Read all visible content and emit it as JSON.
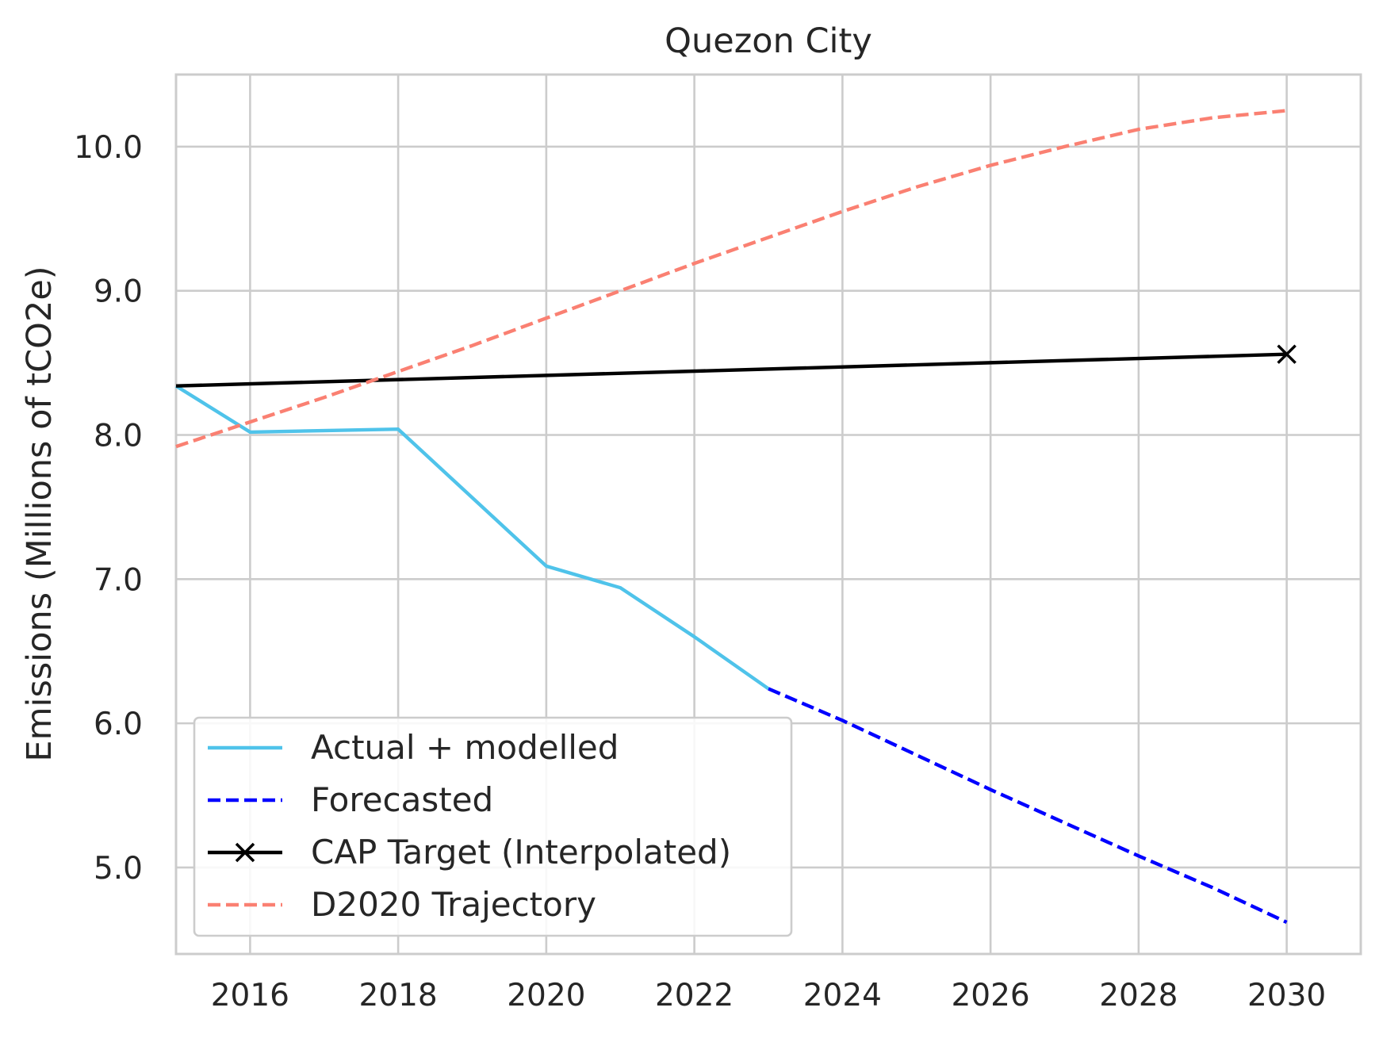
{
  "chart_data": {
    "type": "line",
    "title": "Quezon City",
    "xlabel": "",
    "ylabel": "Emissions (Millions of tCO2e)",
    "xlim": [
      2015,
      2031
    ],
    "ylim": [
      4.4,
      10.5
    ],
    "xticks": [
      2016,
      2018,
      2020,
      2022,
      2024,
      2026,
      2028,
      2030
    ],
    "xtick_labels": [
      "2016",
      "2018",
      "2020",
      "2022",
      "2024",
      "2026",
      "2028",
      "2030"
    ],
    "yticks": [
      5.0,
      6.0,
      7.0,
      8.0,
      9.0,
      10.0
    ],
    "ytick_labels": [
      "5.0",
      "6.0",
      "7.0",
      "8.0",
      "9.0",
      "10.0"
    ],
    "grid": true,
    "legend_position": "lower-left",
    "series": [
      {
        "name": "Actual + modelled",
        "color": "#4fc3ea",
        "style": "solid",
        "marker": "none",
        "x": [
          2015,
          2016,
          2018,
          2020,
          2021,
          2022,
          2023
        ],
        "y": [
          8.34,
          8.02,
          8.04,
          7.09,
          6.94,
          6.6,
          6.24
        ]
      },
      {
        "name": "Forecasted",
        "color": "#0000ff",
        "style": "dashed",
        "marker": "none",
        "x": [
          2023,
          2024,
          2025,
          2026,
          2027,
          2028,
          2029,
          2030
        ],
        "y": [
          6.24,
          6.02,
          5.78,
          5.54,
          5.31,
          5.08,
          4.86,
          4.62
        ]
      },
      {
        "name": "CAP Target (Interpolated)",
        "color": "#000000",
        "style": "solid",
        "marker": "x-at-end",
        "x": [
          2015,
          2030
        ],
        "y": [
          8.34,
          8.56
        ]
      },
      {
        "name": "D2020 Trajectory",
        "color": "#fa8072",
        "style": "dashed",
        "marker": "none",
        "x": [
          2015,
          2016,
          2017,
          2018,
          2019,
          2020,
          2021,
          2022,
          2023,
          2024,
          2025,
          2026,
          2027,
          2028,
          2029,
          2030
        ],
        "y": [
          7.92,
          8.09,
          8.26,
          8.44,
          8.62,
          8.81,
          9.0,
          9.19,
          9.37,
          9.55,
          9.72,
          9.87,
          10.0,
          10.12,
          10.2,
          10.25
        ]
      }
    ]
  }
}
